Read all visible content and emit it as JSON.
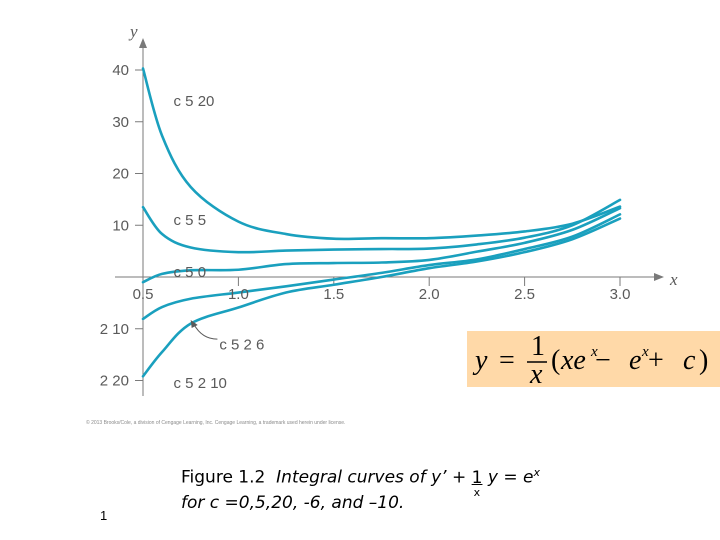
{
  "chart_data": {
    "type": "line",
    "xlabel": "x",
    "ylabel": "y",
    "xlim": [
      0.3,
      3.2
    ],
    "ylim": [
      -23,
      45
    ],
    "x_ticks": [
      {
        "value": 0.5,
        "label": "0.5"
      },
      {
        "value": 1.0,
        "label": "1.0"
      },
      {
        "value": 1.5,
        "label": "1.5"
      },
      {
        "value": 2.0,
        "label": "2.0"
      },
      {
        "value": 2.5,
        "label": "2.5"
      },
      {
        "value": 3.0,
        "label": "3.0"
      }
    ],
    "y_ticks": [
      {
        "value": 40,
        "label": "40"
      },
      {
        "value": 30,
        "label": "30"
      },
      {
        "value": 20,
        "label": "20"
      },
      {
        "value": 10,
        "label": "10"
      },
      {
        "value": -10,
        "label": "2 10"
      },
      {
        "value": -20,
        "label": "2 20"
      }
    ],
    "series": [
      {
        "c": 20,
        "x": [
          0.5,
          0.6,
          0.75,
          1.0,
          1.25,
          1.5,
          1.75,
          2.0,
          2.25,
          2.5,
          2.75,
          3.0
        ],
        "y": [
          40.3,
          27.3,
          17.4,
          10.7,
          8.3,
          7.4,
          7.5,
          7.5,
          8.0,
          8.8,
          10.3,
          13.6
        ]
      },
      {
        "c": 5,
        "x": [
          0.5,
          0.6,
          0.75,
          1.0,
          1.25,
          1.5,
          1.75,
          2.0,
          2.25,
          2.5,
          2.75,
          3.0
        ],
        "y": [
          13.5,
          8.3,
          5.7,
          4.8,
          5.1,
          5.3,
          5.4,
          5.5,
          6.3,
          7.6,
          10.0,
          14.9
        ]
      },
      {
        "c": 0,
        "x": [
          0.5,
          0.6,
          0.75,
          1.0,
          1.25,
          1.5,
          1.75,
          2.0,
          2.25,
          2.5,
          2.75,
          3.0
        ],
        "y": [
          -1.0,
          0.6,
          1.3,
          1.4,
          2.5,
          2.7,
          2.8,
          3.3,
          4.9,
          6.6,
          9.1,
          13.3
        ]
      },
      {
        "c": -6,
        "x": [
          0.5,
          0.6,
          0.75,
          1.0,
          1.25,
          1.5,
          1.75,
          2.0,
          2.25,
          2.5,
          2.75,
          3.0
        ],
        "y": [
          -8.1,
          -5.8,
          -4.2,
          -3.0,
          -1.8,
          -0.5,
          0.8,
          2.3,
          3.4,
          5.4,
          7.8,
          12.1
        ]
      },
      {
        "c": -10,
        "x": [
          0.5,
          0.6,
          0.75,
          1.0,
          1.25,
          1.5,
          1.75,
          2.0,
          2.25,
          2.5,
          2.75,
          3.0
        ],
        "y": [
          -19.2,
          -14.5,
          -9.0,
          -5.9,
          -3.0,
          -1.5,
          0.0,
          1.7,
          3.0,
          4.8,
          7.3,
          11.3
        ]
      }
    ],
    "curve_labels": [
      {
        "text": "c 5  20",
        "x": 0.66,
        "y": 34.0
      },
      {
        "text": "c 5  5",
        "x": 0.66,
        "y": 11.0
      },
      {
        "text": "c 5  0",
        "x": 0.66,
        "y": 1.0
      },
      {
        "text": "c 5  2 6",
        "x": 0.9,
        "y": -13.0
      },
      {
        "text": "c 5  2 10",
        "x": 0.66,
        "y": -20.5
      }
    ],
    "annotation_arrow": {
      "from": {
        "x": 0.89,
        "y": -12.0
      },
      "to": {
        "x": 0.75,
        "y": -8.3
      }
    },
    "grid": false,
    "legend": "none"
  },
  "formula": {
    "lhs": "y",
    "equals": "=",
    "numerator": "1",
    "denominator": "x",
    "rhs_parts": [
      "(",
      "xe",
      "x",
      " − ",
      "e",
      "x",
      " + ",
      "c",
      ")"
    ]
  },
  "copyright": "© 2013 Brooks/Cole, a division of Cengage Learning, Inc.   Cengage Learning, a trademark used herein under license.",
  "caption": {
    "lead": "Figure 1.2",
    "text1": "Integral curves of ",
    "yprime": "y’",
    "plus": " + ",
    "frac_num": "1",
    "frac_den": "x",
    "text2": " y = e",
    "sup": "x",
    "line2": "for c =0,5,20, -6, and –10."
  },
  "page_number": "1"
}
